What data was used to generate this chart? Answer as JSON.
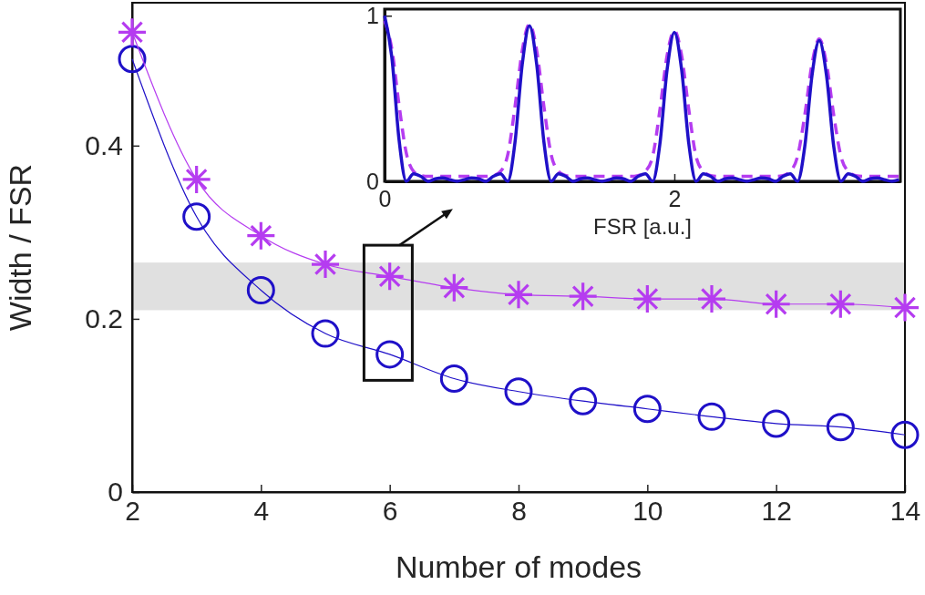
{
  "chart_data": [
    {
      "type": "line",
      "xlabel": "Number of modes",
      "ylabel": "Width / FSR",
      "x": [
        2,
        3,
        4,
        5,
        6,
        7,
        8,
        9,
        10,
        11,
        12,
        13,
        14
      ],
      "xlim": [
        2,
        14
      ],
      "ylim": [
        0,
        0.565
      ],
      "xticks": [
        2,
        4,
        6,
        8,
        10,
        12,
        14
      ],
      "yticks": [
        0,
        0.2,
        0.4
      ],
      "grid": false,
      "series": [
        {
          "color": "#1f10c8",
          "marker": "circle",
          "values": [
            0.5,
            0.318,
            0.233,
            0.183,
            0.159,
            0.131,
            0.116,
            0.105,
            0.096,
            0.087,
            0.079,
            0.075,
            0.066
          ]
        },
        {
          "color": "#b53cf0",
          "marker": "cross",
          "values": [
            0.531,
            0.361,
            0.296,
            0.263,
            0.249,
            0.236,
            0.228,
            0.226,
            0.223,
            0.223,
            0.217,
            0.217,
            0.213
          ]
        }
      ],
      "bands": [
        {
          "axis": "y",
          "from": 0.21,
          "to": 0.265,
          "color": "#e0e0e0"
        }
      ]
    },
    {
      "type": "line",
      "xlabel": "FSR [a.u.]",
      "xlim": [
        0,
        3.56
      ],
      "ylim": [
        0,
        1.04
      ],
      "xticks": [
        0,
        2
      ],
      "yticks": [
        0,
        1
      ],
      "grid": false,
      "marker": "none",
      "x": [
        0,
        0.05,
        0.1,
        0.15,
        0.2,
        0.25,
        0.3,
        0.35,
        0.4,
        0.45,
        0.5,
        0.55,
        0.6,
        0.65,
        0.7,
        0.75,
        0.8,
        0.85,
        0.9,
        0.95,
        1,
        1.05,
        1.1,
        1.15,
        1.2,
        1.25,
        1.3,
        1.35,
        1.4,
        1.45,
        1.5,
        1.55,
        1.6,
        1.65,
        1.7,
        1.75,
        1.8,
        1.85,
        1.9,
        1.95,
        2,
        2.05,
        2.1,
        2.15,
        2.2,
        2.25,
        2.3,
        2.35,
        2.4,
        2.45,
        2.5,
        2.55,
        2.6,
        2.65,
        2.7,
        2.75,
        2.8,
        2.85,
        2.9,
        2.95,
        3,
        3.05,
        3.1,
        3.15,
        3.2,
        3.25,
        3.3,
        3.35,
        3.4,
        3.45,
        3.5,
        3.55
      ],
      "series": [
        {
          "color": "#b53cf0",
          "line_style": "dashed",
          "values": [
            0.97,
            0.8,
            0.46,
            0.17,
            0.06,
            0.035,
            0.03,
            0.03,
            0.03,
            0.03,
            0.03,
            0.03,
            0.03,
            0.03,
            0.03,
            0.035,
            0.06,
            0.16,
            0.45,
            0.79,
            0.95,
            0.79,
            0.45,
            0.16,
            0.06,
            0.035,
            0.03,
            0.03,
            0.03,
            0.03,
            0.03,
            0.03,
            0.03,
            0.03,
            0.03,
            0.035,
            0.06,
            0.15,
            0.43,
            0.76,
            0.91,
            0.76,
            0.43,
            0.15,
            0.06,
            0.035,
            0.03,
            0.03,
            0.03,
            0.03,
            0.03,
            0.03,
            0.03,
            0.03,
            0.03,
            0.035,
            0.06,
            0.15,
            0.4,
            0.71,
            0.86,
            0.71,
            0.4,
            0.15,
            0.06,
            0.035,
            0.03,
            0.03,
            0.03,
            0.03,
            0.03,
            0.03
          ]
        },
        {
          "color": "#1f10c8",
          "line_style": "solid",
          "values": [
            1,
            0.75,
            0.25,
            0,
            0.045,
            0.03,
            0,
            0.015,
            0.02,
            0.01,
            0,
            0.01,
            0.02,
            0.015,
            0,
            0.03,
            0.045,
            0,
            0.235,
            0.705,
            0.94,
            0.705,
            0.235,
            0,
            0.045,
            0.03,
            0,
            0.015,
            0.02,
            0.01,
            0,
            0.01,
            0.02,
            0.015,
            0,
            0.03,
            0.045,
            0,
            0.225,
            0.675,
            0.9,
            0.675,
            0.225,
            0,
            0.045,
            0.03,
            0,
            0.015,
            0.02,
            0.01,
            0,
            0.01,
            0.02,
            0.015,
            0,
            0.03,
            0.045,
            0,
            0.21,
            0.64,
            0.85,
            0.64,
            0.21,
            0,
            0.045,
            0.03,
            0,
            0.015,
            0.02,
            0.01,
            0,
            0.01
          ]
        }
      ]
    }
  ]
}
